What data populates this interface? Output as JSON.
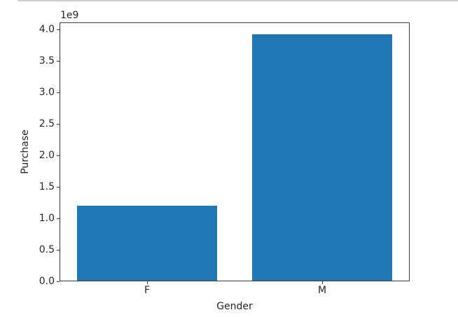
{
  "page": {
    "background": "#ffffff",
    "divider_color": "#cfcfcf",
    "axis_color": "#3c3c3c",
    "text_color": "#262626"
  },
  "chart_data": {
    "type": "bar",
    "title": "",
    "xlabel": "Gender",
    "ylabel": "Purchase",
    "categories": [
      "F",
      "M"
    ],
    "values": [
      1190000000,
      3910000000
    ],
    "bar_color": "#1f77b4",
    "bar_width_fraction": 0.8,
    "ylim": [
      0,
      4110000000
    ],
    "yticks": [
      0,
      500000000,
      1000000000,
      1500000000,
      2000000000,
      2500000000,
      3000000000,
      3500000000,
      4000000000
    ],
    "ytick_labels": [
      "0.0",
      "0.5",
      "1.0",
      "1.5",
      "2.0",
      "2.5",
      "3.0",
      "3.5",
      "4.0"
    ],
    "offset_text": "1e9",
    "grid": false,
    "legend": null
  }
}
